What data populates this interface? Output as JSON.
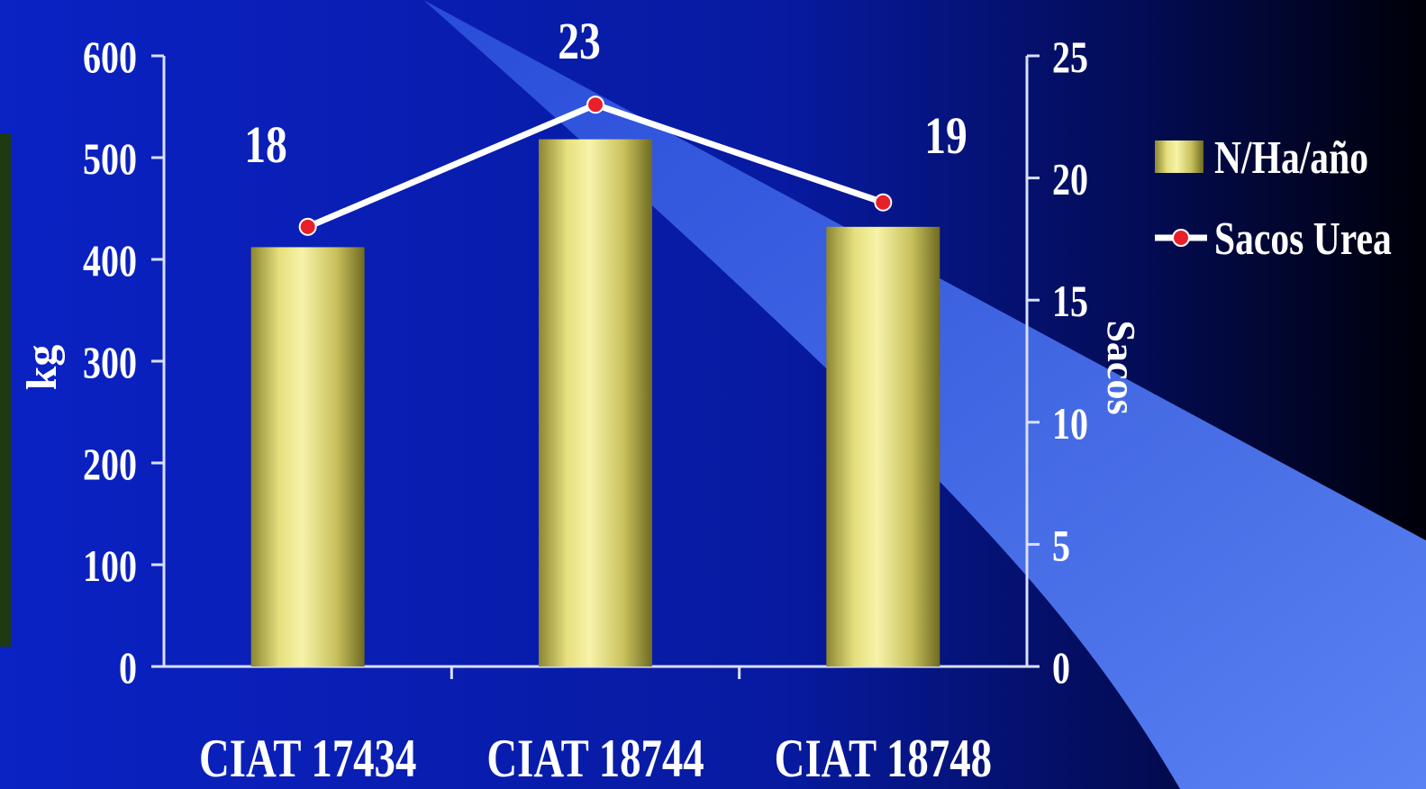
{
  "chart_data": {
    "type": "bar",
    "categories": [
      "CIAT 17434",
      "CIAT 18744",
      "CIAT 18748"
    ],
    "series": [
      {
        "name": "N/Ha/año",
        "axis": "left",
        "kind": "bar",
        "values": [
          412,
          518,
          432
        ]
      },
      {
        "name": "Sacos Urea",
        "axis": "right",
        "kind": "line",
        "values": [
          18,
          23,
          19
        ],
        "data_labels": [
          "18",
          "23",
          "19"
        ]
      }
    ],
    "ylabel": "kg",
    "y2label": "Sacos",
    "ylim": [
      0,
      600
    ],
    "y2lim": [
      0,
      25
    ],
    "y_ticks": [
      "0",
      "100",
      "200",
      "300",
      "400",
      "500",
      "600"
    ],
    "y2_ticks": [
      "0",
      "5",
      "10",
      "15",
      "20",
      "25"
    ],
    "legend_position": "right",
    "grid": false
  },
  "colors": {
    "background": "#0a1fb8",
    "background_dark": "#000010",
    "spotlight": "#4a73f0",
    "bar_light": "#f4ef9c",
    "bar_dark": "#8a8430",
    "line": "#ffffff",
    "marker": "#e8202a",
    "axis": "#d9e0ff",
    "text": "#ffffff"
  }
}
